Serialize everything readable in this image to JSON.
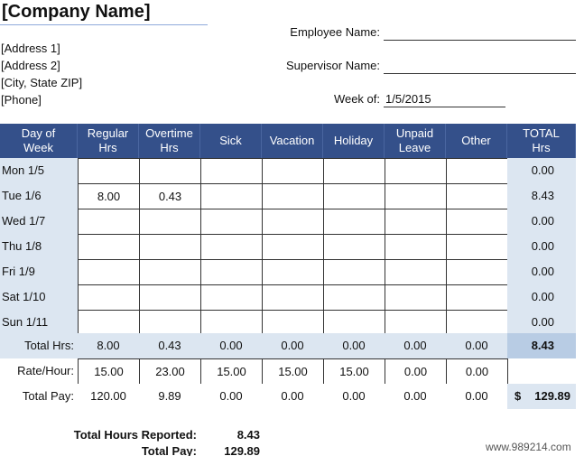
{
  "header": {
    "company": "[Company Name]",
    "address": [
      "[Address 1]",
      "[Address 2]",
      "[City, State  ZIP]",
      "[Phone]"
    ],
    "fields": [
      {
        "label": "Employee Name:"
      },
      {
        "label": "Supervisor Name:"
      },
      {
        "label": "Week of:",
        "value": "1/5/2015"
      }
    ]
  },
  "table": {
    "columns": [
      "Day of Week",
      "Regular Hrs",
      "Overtime Hrs",
      "Sick",
      "Vacation",
      "Holiday",
      "Unpaid Leave",
      "Other",
      "TOTAL Hrs"
    ],
    "rows": [
      {
        "day": "Mon 1/5",
        "cells": [
          null,
          null,
          null,
          null,
          null,
          null,
          null,
          "0.00"
        ]
      },
      {
        "day": "Tue 1/6",
        "cells": [
          "8.00",
          "0.43",
          null,
          null,
          null,
          null,
          null,
          "8.43"
        ]
      },
      {
        "day": "Wed 1/7",
        "cells": [
          null,
          null,
          null,
          null,
          null,
          null,
          null,
          "0.00"
        ]
      },
      {
        "day": "Thu 1/8",
        "cells": [
          null,
          null,
          null,
          null,
          null,
          null,
          null,
          "0.00"
        ]
      },
      {
        "day": "Fri 1/9",
        "cells": [
          null,
          null,
          null,
          null,
          null,
          null,
          null,
          "0.00"
        ]
      },
      {
        "day": "Sat 1/10",
        "cells": [
          null,
          null,
          null,
          null,
          null,
          null,
          null,
          "0.00"
        ]
      },
      {
        "day": "Sun 1/11",
        "cells": [
          null,
          null,
          null,
          null,
          null,
          null,
          null,
          "0.00"
        ]
      }
    ],
    "totals": {
      "label": "Total Hrs:",
      "values": [
        "8.00",
        "0.43",
        "0.00",
        "0.00",
        "0.00",
        "0.00",
        "0.00",
        "8.43"
      ]
    },
    "rate": {
      "label": "Rate/Hour:",
      "values": [
        "15.00",
        "23.00",
        "15.00",
        "15.00",
        "15.00",
        "0.00",
        "0.00"
      ]
    },
    "pay": {
      "label": "Total Pay:",
      "values": [
        "120.00",
        "9.89",
        "0.00",
        "0.00",
        "0.00",
        "0.00",
        "0.00"
      ],
      "currency": "$",
      "total": "129.89"
    }
  },
  "summary": [
    {
      "label": "Total Hours Reported:",
      "value": "8.43"
    },
    {
      "label": "Total Pay:",
      "value": "129.89"
    }
  ],
  "watermark": "www.989214.com"
}
